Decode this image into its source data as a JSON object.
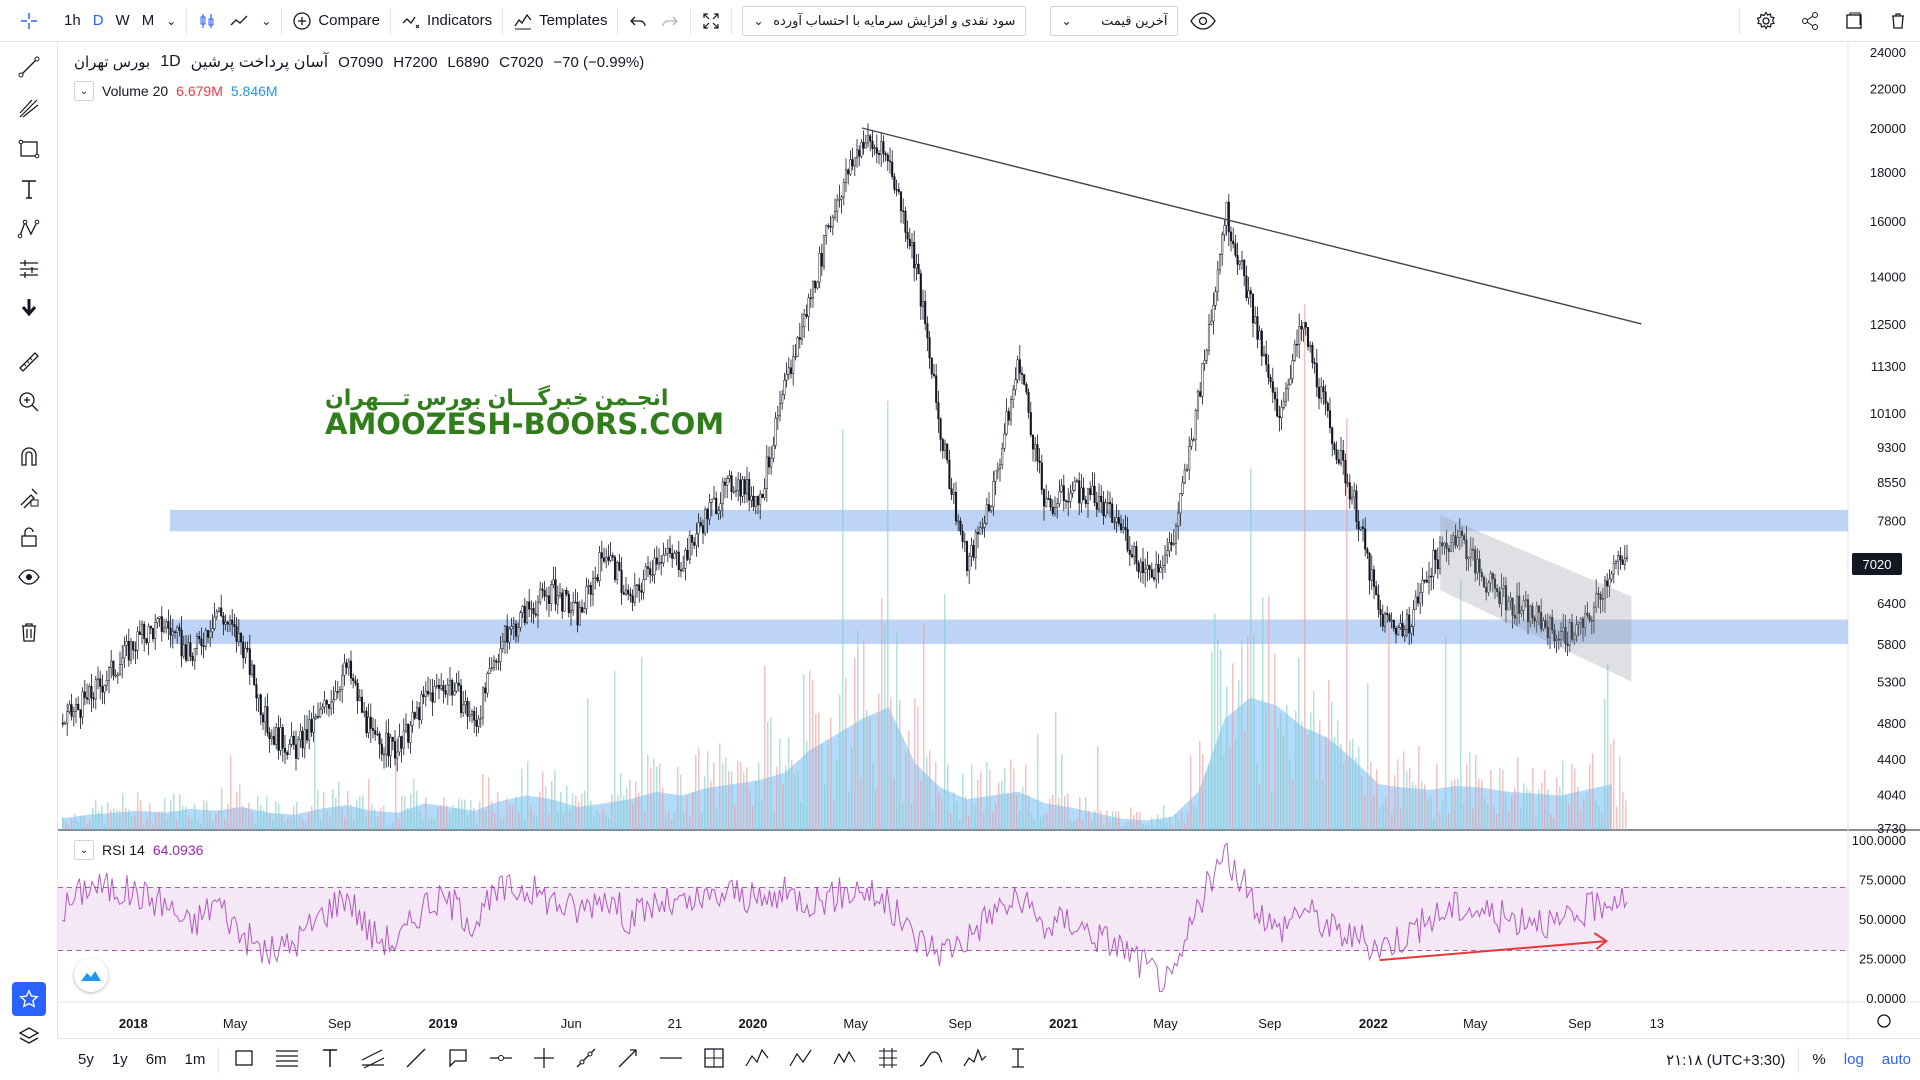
{
  "toolbar": {
    "intervals": [
      "1h",
      "D",
      "W",
      "M"
    ],
    "active_interval": "D",
    "compare_label": "Compare",
    "indicators_label": "Indicators",
    "templates_label": "Templates",
    "strategy_dropdown": "سود نقدی و افزایش سرمایه با احتساب آورده",
    "price_dropdown": "آخرین قیمت"
  },
  "legend": {
    "symbol": "آسان پرداخت پرشین",
    "interval": "1D",
    "exchange": "بورس تهران",
    "open": "O7090",
    "high": "H7200",
    "low": "L6890",
    "close": "C7020",
    "change": "−70 (−0.99%)",
    "volume_label": "Volume 20",
    "volume_value1": "6.679M",
    "volume_value2": "5.846M",
    "rsi_label": "RSI 14",
    "rsi_value": "64.0936"
  },
  "watermark": {
    "line1": "انجـمن خبرگـــان بورس تـــهران",
    "line2": "AMOOZESH-BOORS.COM"
  },
  "price_axis": {
    "ticks": [
      "24000",
      "22000",
      "20000",
      "18000",
      "16000",
      "14000",
      "12500",
      "11300",
      "10100",
      "9300",
      "8550",
      "7800",
      "6400",
      "5800",
      "5300",
      "4800",
      "4400",
      "4040",
      "3730"
    ],
    "current_price": "7020"
  },
  "rsi_axis": {
    "ticks": [
      "100.0000",
      "75.0000",
      "50.0000",
      "25.0000",
      "0.0000"
    ]
  },
  "time_axis": {
    "ticks": [
      "2018",
      "May",
      "Sep",
      "2019",
      "Jun",
      "21",
      "2020",
      "May",
      "Sep",
      "2021",
      "May",
      "Sep",
      "2022",
      "May",
      "Sep",
      "13"
    ]
  },
  "bottom": {
    "ranges": [
      "5y",
      "1y",
      "6m",
      "1m"
    ],
    "clock": "۲۱:۱۸ (UTC+3:30)",
    "percent": "%",
    "log": "log",
    "auto": "auto"
  },
  "colors": {
    "accent": "#2962ff",
    "volume_red": "#f23645",
    "volume_blue": "#2196f3",
    "rsi_line": "#9c27b0",
    "support_zone": "#b3cdf5",
    "watermark": "#2f7d1b"
  },
  "chart_data": [
    {
      "type": "candlestick",
      "title": "آسان پرداخت پرشین",
      "x_range": [
        "2017-12",
        "2022-12"
      ],
      "y_scale": "log",
      "ylim": [
        3730,
        24000
      ],
      "close_path": {
        "dates": [
          "2017-12",
          "2018-01",
          "2018-03",
          "2018-04",
          "2018-05",
          "2018-06",
          "2018-07",
          "2018-08",
          "2018-09",
          "2018-10",
          "2018-11",
          "2018-12",
          "2019-01",
          "2019-02",
          "2019-03",
          "2019-04",
          "2019-05",
          "2019-06",
          "2019-07",
          "2019-08",
          "2019-09",
          "2019-10",
          "2019-11",
          "2019-12",
          "2020-01",
          "2020-02",
          "2020-03",
          "2020-04",
          "2020-05",
          "2020-06",
          "2020-07",
          "2020-08",
          "2020-09",
          "2020-10",
          "2020-11",
          "2020-12",
          "2021-01",
          "2021-02",
          "2021-03",
          "2021-04",
          "2021-05",
          "2021-06",
          "2021-07",
          "2021-08",
          "2021-09",
          "2021-10",
          "2021-11",
          "2021-12",
          "2022-01",
          "2022-02",
          "2022-03",
          "2022-04",
          "2022-05",
          "2022-06",
          "2022-07",
          "2022-08",
          "2022-09",
          "2022-10",
          "2022-11",
          "2022-12"
        ],
        "close": [
          4800,
          5100,
          5900,
          6100,
          5600,
          6300,
          5800,
          4700,
          4500,
          4900,
          5500,
          4600,
          4500,
          5100,
          5300,
          4800,
          5800,
          6300,
          6600,
          6200,
          7300,
          6400,
          7200,
          7100,
          8000,
          8600,
          8200,
          10800,
          13500,
          17000,
          19500,
          18500,
          14500,
          9500,
          7000,
          8400,
          11500,
          8000,
          8400,
          8200,
          7700,
          6800,
          7400,
          10500,
          16500,
          13000,
          10000,
          12500,
          9800,
          8100,
          6200,
          6000,
          7000,
          7600,
          6800,
          6400,
          6200,
          5900,
          6100,
          7020
        ]
      },
      "support_zones": [
        [
          5800,
          6150
        ],
        [
          7600,
          8000
        ]
      ],
      "trendline": {
        "from": [
          "2020-06",
          20000
        ],
        "to": [
          "2022-11",
          12500
        ]
      },
      "channel": {
        "from": "2022-05",
        "to": "2022-11",
        "upper": [
          7900,
          6500
        ],
        "lower": [
          6600,
          5300
        ]
      }
    },
    {
      "type": "area",
      "title": "Volume 20",
      "series": [
        {
          "name": "Volume 20",
          "values": [
            0.6,
            0.8,
            1.0,
            0.9,
            1.1,
            1.0,
            1.2,
            0.9,
            0.8,
            1.1,
            1.3,
            1.0,
            0.9,
            1.4,
            1.2,
            1.0,
            1.5,
            1.8,
            1.6,
            1.2,
            1.4,
            1.6,
            2.0,
            1.8,
            2.2,
            2.4,
            2.6,
            3.0,
            4.2,
            5.0,
            5.8,
            6.4,
            3.5,
            2.2,
            1.6,
            1.8,
            2.0,
            1.4,
            1.2,
            0.9,
            0.6,
            0.5,
            0.7,
            2.0,
            5.8,
            6.9,
            6.5,
            5.4,
            4.8,
            3.6,
            2.4,
            2.2,
            2.1,
            2.3,
            2.2,
            2.0,
            1.9,
            1.8,
            2.1,
            2.4
          ]
        }
      ]
    },
    {
      "type": "line",
      "title": "RSI 14",
      "ylim": [
        0,
        100
      ],
      "bands": [
        30,
        70
      ],
      "series": [
        {
          "name": "RSI 14",
          "values": [
            55,
            72,
            66,
            60,
            45,
            62,
            40,
            28,
            35,
            52,
            66,
            40,
            35,
            60,
            62,
            48,
            68,
            70,
            62,
            55,
            66,
            50,
            60,
            58,
            62,
            68,
            60,
            66,
            62,
            65,
            70,
            58,
            38,
            30,
            38,
            55,
            62,
            45,
            50,
            40,
            33,
            20,
            8,
            60,
            90,
            65,
            42,
            58,
            45,
            38,
            32,
            40,
            50,
            58,
            55,
            50,
            52,
            45,
            55,
            64
          ]
        }
      ],
      "divergence_arrow": {
        "from": [
          "2022-02",
          24
        ],
        "to": [
          "2022-11",
          36
        ]
      }
    }
  ]
}
